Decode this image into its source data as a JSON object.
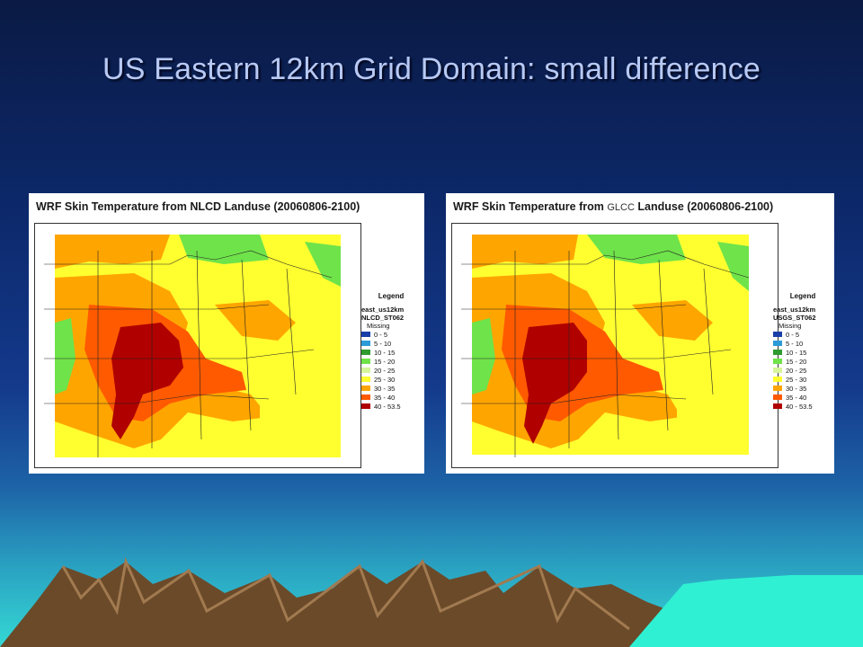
{
  "slide": {
    "title": "US Eastern 12km Grid Domain: small difference"
  },
  "colors": {
    "range_0_5": "#1a3ea8",
    "range_5_10": "#2c9bd8",
    "range_10_15": "#2f9a2f",
    "range_15_20": "#6fe34a",
    "range_20_25": "#d6f59a",
    "range_25_30": "#ffff30",
    "range_30_35": "#ffa500",
    "range_35_40": "#ff5a00",
    "range_40_53_5": "#b00000"
  },
  "maps": [
    {
      "title_prefix": "WRF Skin Temperature from",
      "title_source": "NLCD",
      "title_suffix": "Landuse (20060806-2100)",
      "legend": {
        "heading": "Legend",
        "domain": "east_us12km",
        "layer": "NLCD_ST062",
        "missing": "Missing",
        "items": [
          "0 - 5",
          "5 - 10",
          "10 - 15",
          "15 - 20",
          "20 - 25",
          "25 - 30",
          "30 - 35",
          "35 - 40",
          "40 - 53.5"
        ]
      }
    },
    {
      "title_prefix": "WRF Skin Temperature from",
      "title_source": "GLCC",
      "title_suffix": "Landuse (20060806-2100)",
      "legend": {
        "heading": "Legend",
        "domain": "east_us12km",
        "layer": "USGS_ST062",
        "missing": "Missing",
        "items": [
          "0 - 5",
          "5 - 10",
          "10 - 15",
          "15 - 20",
          "20 - 25",
          "25 - 30",
          "30 - 35",
          "35 - 40",
          "40 - 53.5"
        ]
      }
    }
  ]
}
